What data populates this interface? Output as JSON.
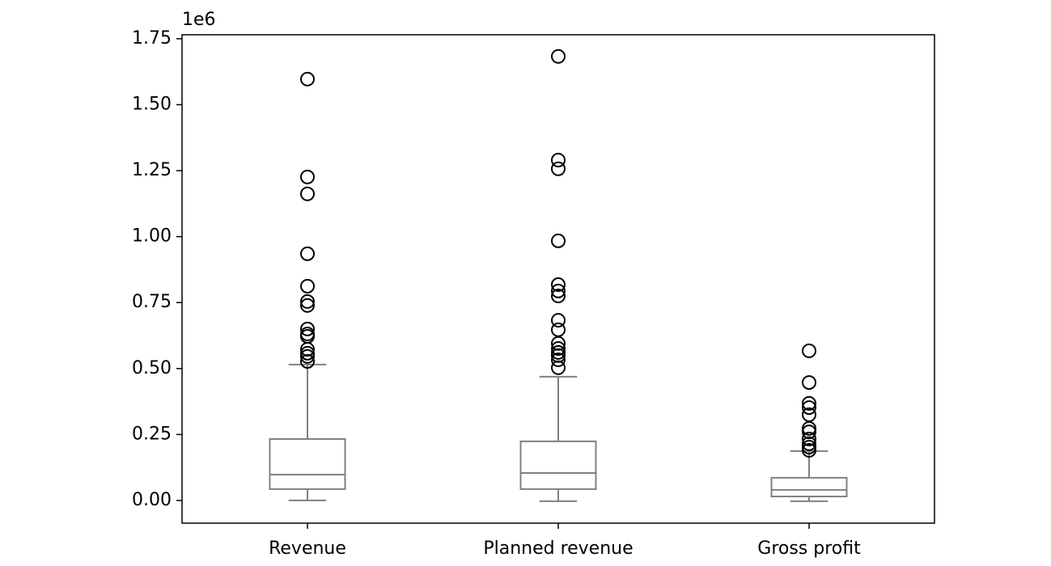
{
  "chart_data": {
    "type": "box",
    "offset_label": "1e6",
    "categories": [
      "Revenue",
      "Planned revenue",
      "Gross profit"
    ],
    "boxes": [
      {
        "low": 0.0,
        "q1": 0.043,
        "median": 0.098,
        "q3": 0.233,
        "high": 0.515,
        "outliers": [
          1.597,
          1.226,
          1.162,
          0.935,
          0.812,
          0.754,
          0.739,
          0.65,
          0.631,
          0.622,
          0.573,
          0.558,
          0.546,
          0.527
        ]
      },
      {
        "low": -0.003,
        "q1": 0.043,
        "median": 0.104,
        "q3": 0.224,
        "high": 0.469,
        "outliers": [
          1.683,
          1.29,
          1.257,
          0.984,
          0.818,
          0.794,
          0.775,
          0.683,
          0.647,
          0.595,
          0.576,
          0.561,
          0.549,
          0.533,
          0.503
        ]
      },
      {
        "low": -0.003,
        "q1": 0.015,
        "median": 0.04,
        "q3": 0.086,
        "high": 0.187,
        "outliers": [
          0.567,
          0.447,
          0.368,
          0.352,
          0.325,
          0.273,
          0.26,
          0.233,
          0.215,
          0.202,
          0.19
        ]
      }
    ],
    "color": "#808080",
    "outlier_color": "#000000",
    "ylim": [
      -0.086,
      1.765
    ],
    "yticks": [
      {
        "value": 0,
        "label": "0.00"
      },
      0.25,
      {
        "value": 0.5,
        "label": "0.50"
      },
      0.75,
      {
        "value": 1,
        "label": "1.00"
      },
      1.25,
      {
        "value": 1.5,
        "label": "1.50"
      },
      1.75
    ],
    "grid": false
  }
}
